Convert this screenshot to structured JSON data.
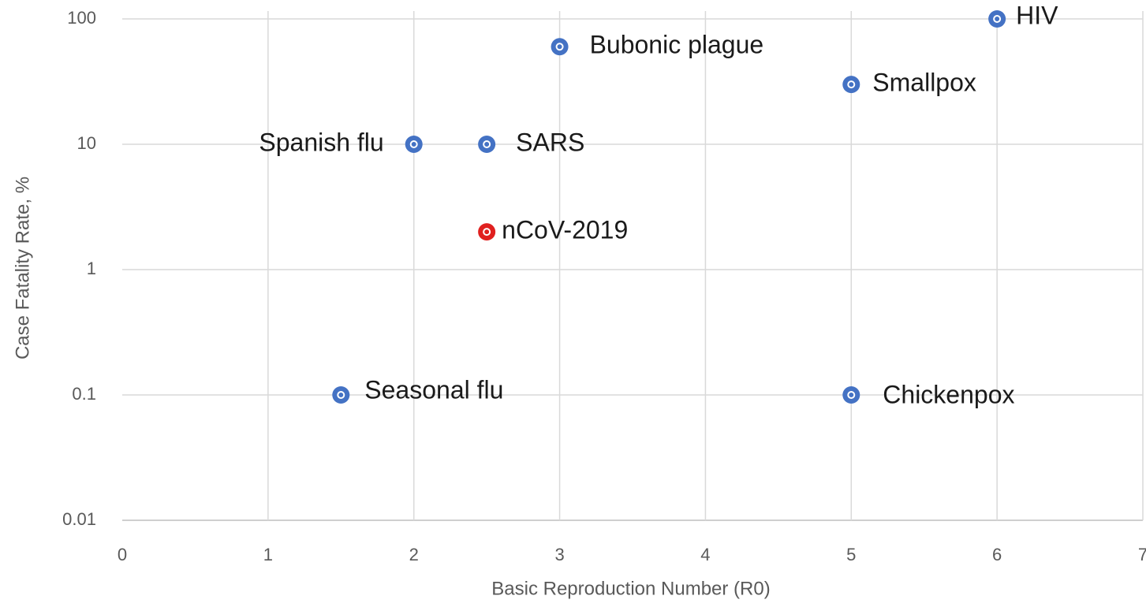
{
  "chart_data": {
    "type": "scatter",
    "x_label": "Basic Reproduction Number (R0)",
    "y_label": "Case Fatality Rate, %",
    "labels": [
      "Bubonic plague",
      "HIV",
      "Smallpox",
      "Spanish flu",
      "SARS",
      "nCoV-2019",
      "Seasonal flu",
      "Chickenpox"
    ],
    "x": [
      3,
      6,
      5,
      2,
      2.5,
      2.5,
      1.5,
      5
    ],
    "values": [
      60,
      100,
      30,
      10,
      10,
      2,
      0.1,
      0.1
    ],
    "colors": [
      "#4472c4",
      "#4472c4",
      "#4472c4",
      "#4472c4",
      "#4472c4",
      "#e0201f",
      "#4472c4",
      "#4472c4"
    ],
    "xlim": [
      0,
      7
    ],
    "xticks": [
      0,
      1,
      2,
      3,
      4,
      5,
      6,
      7
    ],
    "ylim": [
      0.01,
      100
    ],
    "yticks": [
      0.01,
      0.1,
      1,
      10,
      100
    ],
    "yscale": "log",
    "grid": true
  }
}
